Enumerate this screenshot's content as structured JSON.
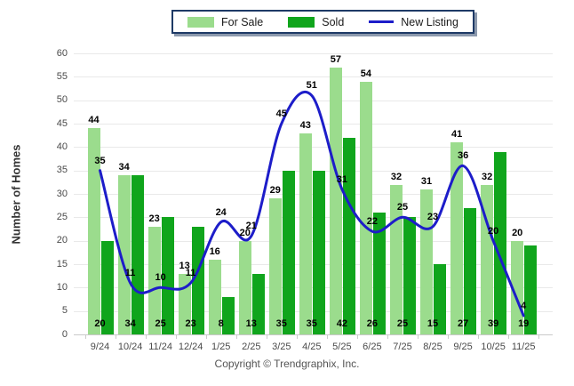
{
  "legend": {
    "items": [
      {
        "label": "For Sale",
        "type": "swatch",
        "color": "#9bdc8d"
      },
      {
        "label": "Sold",
        "type": "swatch",
        "color": "#10a51c"
      },
      {
        "label": "New Listing",
        "type": "line",
        "color": "#1d1dc9"
      }
    ]
  },
  "footer": {
    "text": "Copyright © Trendgraphix, Inc."
  },
  "chart_data": {
    "type": "bar",
    "title": "",
    "xlabel": "",
    "ylabel": "Number of Homes",
    "ylim": [
      0,
      60
    ],
    "ytick_step": 5,
    "grid": true,
    "legend_position": "top",
    "categories": [
      "9/24",
      "10/24",
      "11/24",
      "12/24",
      "1/25",
      "2/25",
      "3/25",
      "4/25",
      "5/25",
      "6/25",
      "7/25",
      "8/25",
      "9/25",
      "10/25",
      "11/25"
    ],
    "series": [
      {
        "name": "For Sale",
        "type": "bar",
        "color": "#9bdc8d",
        "values": [
          44,
          34,
          23,
          13,
          16,
          20,
          29,
          43,
          57,
          54,
          32,
          31,
          41,
          32,
          20
        ]
      },
      {
        "name": "Sold",
        "type": "bar",
        "color": "#10a51c",
        "values": [
          20,
          34,
          25,
          23,
          8,
          13,
          35,
          35,
          42,
          26,
          25,
          15,
          27,
          39,
          19
        ]
      },
      {
        "name": "New Listing",
        "type": "line",
        "color": "#1d1dc9",
        "values": [
          35,
          11,
          10,
          11,
          24,
          21,
          45,
          51,
          31,
          22,
          25,
          23,
          36,
          20,
          4
        ]
      }
    ],
    "colors": {
      "gridline": "#e9e9e9",
      "axis": "#c9c9c9",
      "value_label": "#000000"
    }
  }
}
